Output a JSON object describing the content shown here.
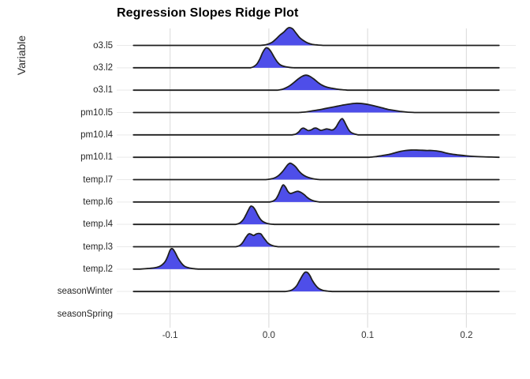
{
  "chart_data": {
    "type": "ridgeline",
    "title": "Regression Slopes Ridge Plot",
    "xlabel": "",
    "ylabel": "Variable",
    "xlim": [
      -0.154,
      0.25
    ],
    "baseline_extent": [
      -0.137,
      0.233
    ],
    "x_ticks": [
      {
        "value": -0.1,
        "label": "-0.1"
      },
      {
        "value": 0.0,
        "label": "0.0"
      },
      {
        "value": 0.1,
        "label": "0.1"
      },
      {
        "value": 0.2,
        "label": "0.2"
      }
    ],
    "grid": true,
    "legend": "none",
    "colors": {
      "fill": "#4e4ee9",
      "outline": "#1f1f1f",
      "grid_vertical": "#e0e0e0",
      "grid_horizontal": "#e9e9e9",
      "background": "#ffffff"
    },
    "note": "density arrays are [slope_value, relative_height 0-1]; rows ordered top to bottom",
    "variables": [
      {
        "label": "o3.l5",
        "has_line": true,
        "density": [
          [
            -0.009,
            0
          ],
          [
            -0.0024,
            0.04
          ],
          [
            0.0032,
            0.15
          ],
          [
            0.0072,
            0.31
          ],
          [
            0.0112,
            0.5
          ],
          [
            0.0152,
            0.65
          ],
          [
            0.0184,
            0.81
          ],
          [
            0.0208,
            0.87
          ],
          [
            0.024,
            0.81
          ],
          [
            0.0272,
            0.62
          ],
          [
            0.0312,
            0.38
          ],
          [
            0.0352,
            0.23
          ],
          [
            0.0392,
            0.12
          ],
          [
            0.044,
            0.05
          ],
          [
            0.0496,
            0.02
          ],
          [
            0.0552,
            0
          ]
        ]
      },
      {
        "label": "o3.l2",
        "has_line": true,
        "density": [
          [
            -0.0184,
            0
          ],
          [
            -0.0152,
            0.06
          ],
          [
            -0.012,
            0.19
          ],
          [
            -0.0088,
            0.46
          ],
          [
            -0.0064,
            0.73
          ],
          [
            -0.004,
            0.92
          ],
          [
            -0.0024,
            0.98
          ],
          [
            0,
            0.92
          ],
          [
            0.0024,
            0.77
          ],
          [
            0.0056,
            0.5
          ],
          [
            0.0088,
            0.27
          ],
          [
            0.012,
            0.13
          ],
          [
            0.016,
            0.06
          ],
          [
            0.0208,
            0.02
          ],
          [
            0.0256,
            0
          ]
        ]
      },
      {
        "label": "o3.l1",
        "has_line": true,
        "density": [
          [
            0.0088,
            0
          ],
          [
            0.0136,
            0.04
          ],
          [
            0.0176,
            0.12
          ],
          [
            0.0216,
            0.23
          ],
          [
            0.0256,
            0.38
          ],
          [
            0.0296,
            0.54
          ],
          [
            0.0336,
            0.67
          ],
          [
            0.0376,
            0.73
          ],
          [
            0.0416,
            0.67
          ],
          [
            0.0456,
            0.54
          ],
          [
            0.0496,
            0.38
          ],
          [
            0.0536,
            0.25
          ],
          [
            0.0584,
            0.15
          ],
          [
            0.0632,
            0.1
          ],
          [
            0.0688,
            0.05
          ],
          [
            0.0744,
            0.02
          ],
          [
            0.08,
            0
          ]
        ]
      },
      {
        "label": "pm10.l5",
        "has_line": true,
        "density": [
          [
            0.0296,
            0
          ],
          [
            0.0376,
            0.03
          ],
          [
            0.044,
            0.08
          ],
          [
            0.0504,
            0.13
          ],
          [
            0.0568,
            0.19
          ],
          [
            0.0632,
            0.25
          ],
          [
            0.0696,
            0.31
          ],
          [
            0.076,
            0.37
          ],
          [
            0.0824,
            0.42
          ],
          [
            0.0888,
            0.45
          ],
          [
            0.0952,
            0.43
          ],
          [
            0.1016,
            0.38
          ],
          [
            0.108,
            0.31
          ],
          [
            0.1144,
            0.23
          ],
          [
            0.1208,
            0.15
          ],
          [
            0.1272,
            0.1
          ],
          [
            0.1336,
            0.05
          ],
          [
            0.14,
            0.02
          ],
          [
            0.148,
            0
          ]
        ]
      },
      {
        "label": "pm10.l4",
        "has_line": true,
        "density": [
          [
            0.0232,
            0
          ],
          [
            0.0272,
            0.04
          ],
          [
            0.0304,
            0.15
          ],
          [
            0.0328,
            0.29
          ],
          [
            0.0352,
            0.33
          ],
          [
            0.0376,
            0.27
          ],
          [
            0.04,
            0.21
          ],
          [
            0.0432,
            0.25
          ],
          [
            0.0456,
            0.32
          ],
          [
            0.048,
            0.33
          ],
          [
            0.0504,
            0.27
          ],
          [
            0.0528,
            0.22
          ],
          [
            0.056,
            0.26
          ],
          [
            0.0584,
            0.29
          ],
          [
            0.0608,
            0.27
          ],
          [
            0.0632,
            0.24
          ],
          [
            0.0656,
            0.26
          ],
          [
            0.068,
            0.38
          ],
          [
            0.0704,
            0.58
          ],
          [
            0.0728,
            0.75
          ],
          [
            0.0744,
            0.79
          ],
          [
            0.076,
            0.69
          ],
          [
            0.0784,
            0.46
          ],
          [
            0.0808,
            0.25
          ],
          [
            0.0832,
            0.12
          ],
          [
            0.0864,
            0.05
          ],
          [
            0.0904,
            0
          ]
        ]
      },
      {
        "label": "pm10.l1",
        "has_line": true,
        "density": [
          [
            0.1016,
            0
          ],
          [
            0.108,
            0.03
          ],
          [
            0.1144,
            0.08
          ],
          [
            0.1208,
            0.13
          ],
          [
            0.1272,
            0.21
          ],
          [
            0.1336,
            0.29
          ],
          [
            0.1384,
            0.33
          ],
          [
            0.144,
            0.35
          ],
          [
            0.1496,
            0.35
          ],
          [
            0.1552,
            0.34
          ],
          [
            0.16,
            0.33
          ],
          [
            0.1648,
            0.33
          ],
          [
            0.1696,
            0.31
          ],
          [
            0.1744,
            0.27
          ],
          [
            0.1792,
            0.21
          ],
          [
            0.1856,
            0.15
          ],
          [
            0.192,
            0.11
          ],
          [
            0.2,
            0.07
          ],
          [
            0.208,
            0.04
          ],
          [
            0.2176,
            0.02
          ],
          [
            0.2256,
            0.01
          ],
          [
            0.2328,
            0
          ]
        ]
      },
      {
        "label": "temp.l7",
        "has_line": true,
        "density": [
          [
            -0.0032,
            0
          ],
          [
            0.0016,
            0.03
          ],
          [
            0.0056,
            0.08
          ],
          [
            0.0096,
            0.19
          ],
          [
            0.0136,
            0.38
          ],
          [
            0.0168,
            0.58
          ],
          [
            0.0192,
            0.73
          ],
          [
            0.0216,
            0.8
          ],
          [
            0.024,
            0.75
          ],
          [
            0.0272,
            0.62
          ],
          [
            0.0304,
            0.42
          ],
          [
            0.0336,
            0.27
          ],
          [
            0.0376,
            0.15
          ],
          [
            0.0416,
            0.08
          ],
          [
            0.0464,
            0.03
          ],
          [
            0.052,
            0
          ]
        ]
      },
      {
        "label": "temp.l6",
        "has_line": true,
        "density": [
          [
            0.0008,
            0
          ],
          [
            0.004,
            0.04
          ],
          [
            0.0072,
            0.15
          ],
          [
            0.0096,
            0.35
          ],
          [
            0.012,
            0.62
          ],
          [
            0.0144,
            0.83
          ],
          [
            0.0168,
            0.73
          ],
          [
            0.0192,
            0.52
          ],
          [
            0.0216,
            0.42
          ],
          [
            0.024,
            0.44
          ],
          [
            0.0272,
            0.5
          ],
          [
            0.0296,
            0.52
          ],
          [
            0.0328,
            0.46
          ],
          [
            0.036,
            0.35
          ],
          [
            0.0392,
            0.21
          ],
          [
            0.0424,
            0.11
          ],
          [
            0.0464,
            0.04
          ],
          [
            0.0512,
            0
          ]
        ]
      },
      {
        "label": "temp.l4",
        "has_line": true,
        "density": [
          [
            -0.0336,
            0
          ],
          [
            -0.0304,
            0.04
          ],
          [
            -0.028,
            0.12
          ],
          [
            -0.0256,
            0.25
          ],
          [
            -0.0232,
            0.46
          ],
          [
            -0.0208,
            0.69
          ],
          [
            -0.0184,
            0.88
          ],
          [
            -0.016,
            0.85
          ],
          [
            -0.0136,
            0.69
          ],
          [
            -0.0112,
            0.46
          ],
          [
            -0.0088,
            0.27
          ],
          [
            -0.0064,
            0.15
          ],
          [
            -0.0032,
            0.07
          ],
          [
            0.0008,
            0.02
          ],
          [
            0.0056,
            0
          ]
        ]
      },
      {
        "label": "temp.l3",
        "has_line": true,
        "density": [
          [
            -0.0336,
            0
          ],
          [
            -0.0304,
            0.04
          ],
          [
            -0.028,
            0.12
          ],
          [
            -0.0256,
            0.27
          ],
          [
            -0.0232,
            0.46
          ],
          [
            -0.0208,
            0.61
          ],
          [
            -0.0192,
            0.63
          ],
          [
            -0.0168,
            0.58
          ],
          [
            -0.0152,
            0.55
          ],
          [
            -0.0128,
            0.62
          ],
          [
            -0.0104,
            0.65
          ],
          [
            -0.008,
            0.62
          ],
          [
            -0.0056,
            0.46
          ],
          [
            -0.0032,
            0.31
          ],
          [
            -0.0008,
            0.17
          ],
          [
            0.0024,
            0.08
          ],
          [
            0.0056,
            0.03
          ],
          [
            0.0096,
            0
          ]
        ]
      },
      {
        "label": "temp.l2",
        "has_line": true,
        "density": [
          [
            -0.1304,
            0
          ],
          [
            -0.1224,
            0.03
          ],
          [
            -0.116,
            0.06
          ],
          [
            -0.1112,
            0.12
          ],
          [
            -0.108,
            0.21
          ],
          [
            -0.1048,
            0.38
          ],
          [
            -0.1024,
            0.62
          ],
          [
            -0.1,
            0.92
          ],
          [
            -0.0984,
            1
          ],
          [
            -0.0968,
            0.96
          ],
          [
            -0.0944,
            0.77
          ],
          [
            -0.092,
            0.54
          ],
          [
            -0.0888,
            0.31
          ],
          [
            -0.0856,
            0.15
          ],
          [
            -0.0824,
            0.08
          ],
          [
            -0.0776,
            0.03
          ],
          [
            -0.0712,
            0
          ]
        ]
      },
      {
        "label": "seasonWinter",
        "has_line": true,
        "density": [
          [
            0.0168,
            0
          ],
          [
            0.0216,
            0.04
          ],
          [
            0.0248,
            0.12
          ],
          [
            0.028,
            0.27
          ],
          [
            0.0312,
            0.54
          ],
          [
            0.0344,
            0.81
          ],
          [
            0.0368,
            0.94
          ],
          [
            0.0392,
            0.92
          ],
          [
            0.0416,
            0.77
          ],
          [
            0.044,
            0.54
          ],
          [
            0.0472,
            0.31
          ],
          [
            0.0504,
            0.15
          ],
          [
            0.0544,
            0.06
          ],
          [
            0.0592,
            0.02
          ],
          [
            0.064,
            0
          ]
        ]
      },
      {
        "label": "seasonSpring",
        "has_line": false,
        "density": []
      }
    ]
  }
}
